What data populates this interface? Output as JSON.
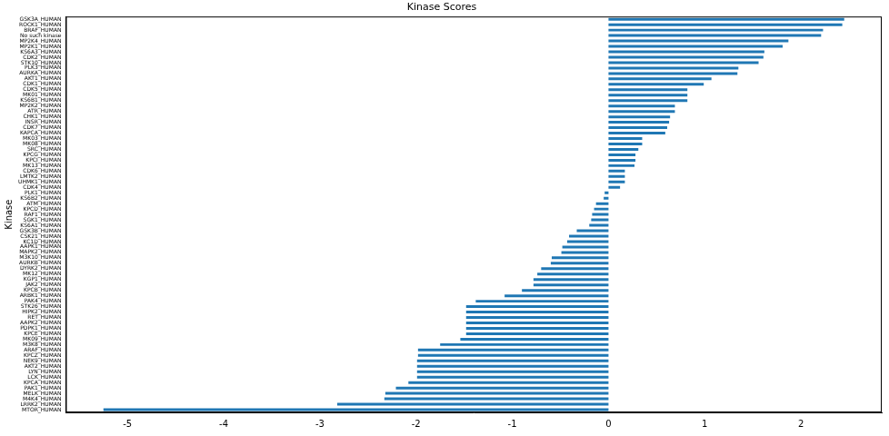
{
  "chart_data": {
    "type": "bar",
    "orientation": "horizontal",
    "title": "Kinase Scores",
    "y_label": "Kinase",
    "categories": [
      "GSK3A_HUMAN",
      "ROCK1_HUMAN",
      "BRAF_HUMAN",
      "No such kinase",
      "MP2K4_HUMAN",
      "MP2K1_HUMAN",
      "KS6A3_HUMAN",
      "CDK2_HUMAN",
      "STK10_HUMAN",
      "PLK3_HUMAN",
      "AURKA_HUMAN",
      "AKT1_HUMAN",
      "CDK1_HUMAN",
      "CDK5_HUMAN",
      "MK01_HUMAN",
      "KS6B1_HUMAN",
      "MP2K2_HUMAN",
      "ATR_HUMAN",
      "CHK1_HUMAN",
      "INSR_HUMAN",
      "CDK7_HUMAN",
      "KAPCA_HUMAN",
      "MK03_HUMAN",
      "MK08_HUMAN",
      "SRC_HUMAN",
      "KPCG_HUMAN",
      "KPCI_HUMAN",
      "MK13_HUMAN",
      "CDK6_HUMAN",
      "LMTK2_HUMAN",
      "UHMK1_HUMAN",
      "CDK4_HUMAN",
      "PLK1_HUMAN",
      "KS6B2_HUMAN",
      "ATM_HUMAN",
      "KPCD_HUMAN",
      "RAF1_HUMAN",
      "SGK1_HUMAN",
      "KS6A1_HUMAN",
      "GSK3B_HUMAN",
      "CSK21_HUMAN",
      "KC1D_HUMAN",
      "AAPK1_HUMAN",
      "MAPK2_HUMAN",
      "M3K10_HUMAN",
      "AURKB_HUMAN",
      "DYRK2_HUMAN",
      "MK12_HUMAN",
      "KGP1_HUMAN",
      "JAK2_HUMAN",
      "KPCB_HUMAN",
      "ARBK1_HUMAN",
      "PAK4_HUMAN",
      "STK26_HUMAN",
      "HIPK2_HUMAN",
      "RET_HUMAN",
      "AAPK2_HUMAN",
      "PDPK1_HUMAN",
      "KPCE_HUMAN",
      "MK09_HUMAN",
      "M3K8_HUMAN",
      "ARAF_HUMAN",
      "KPCZ_HUMAN",
      "NEK9_HUMAN",
      "AKT2_HUMAN",
      "LYN_HUMAN",
      "LCK_HUMAN",
      "KPCA_HUMAN",
      "PAK1_HUMAN",
      "MELK_HUMAN",
      "M4K4_HUMAN",
      "LRRK2_HUMAN",
      "MTOR_HUMAN"
    ],
    "values": [
      2.45,
      2.43,
      2.23,
      2.21,
      1.87,
      1.81,
      1.62,
      1.61,
      1.56,
      1.35,
      1.34,
      1.07,
      0.99,
      0.82,
      0.82,
      0.82,
      0.69,
      0.69,
      0.64,
      0.63,
      0.61,
      0.59,
      0.35,
      0.35,
      0.31,
      0.28,
      0.28,
      0.27,
      0.17,
      0.17,
      0.17,
      0.12,
      -0.04,
      -0.05,
      -0.13,
      -0.15,
      -0.17,
      -0.18,
      -0.2,
      -0.33,
      -0.41,
      -0.43,
      -0.48,
      -0.49,
      -0.59,
      -0.6,
      -0.7,
      -0.74,
      -0.78,
      -0.78,
      -0.9,
      -1.08,
      -1.38,
      -1.48,
      -1.48,
      -1.48,
      -1.48,
      -1.48,
      -1.48,
      -1.54,
      -1.75,
      -1.98,
      -1.98,
      -1.99,
      -1.99,
      -1.99,
      -1.99,
      -2.08,
      -2.21,
      -2.32,
      -2.33,
      -2.82,
      -5.25
    ],
    "color": "#1f77b4",
    "xlim": [
      -5.64,
      2.84
    ],
    "xticks": [
      -5,
      -4,
      -3,
      -2,
      -1,
      0,
      1,
      2
    ],
    "grid": false
  }
}
